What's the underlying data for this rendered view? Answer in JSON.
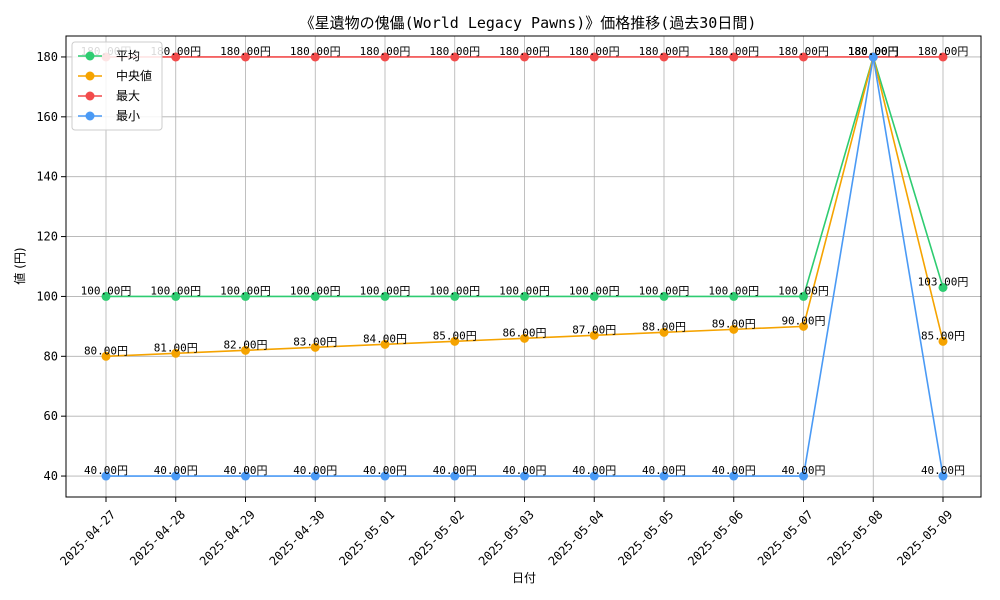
{
  "chart_data": {
    "type": "line",
    "title": "《星遺物の傀儡(World Legacy Pawns)》価格推移(過去30日間)",
    "xlabel": "日付",
    "ylabel": "値 (円)",
    "ylim": [
      33,
      187
    ],
    "yticks": [
      40,
      60,
      80,
      100,
      120,
      140,
      160,
      180
    ],
    "grid": true,
    "legend_position": "top-left",
    "value_suffix": "円",
    "categories": [
      "2025-04-27",
      "2025-04-28",
      "2025-04-29",
      "2025-04-30",
      "2025-05-01",
      "2025-05-02",
      "2025-05-03",
      "2025-05-04",
      "2025-05-05",
      "2025-05-06",
      "2025-05-07",
      "2025-05-08",
      "2025-05-09"
    ],
    "series": [
      {
        "name": "平均",
        "color": "#2ecc71",
        "values": [
          100,
          100,
          100,
          100,
          100,
          100,
          100,
          100,
          100,
          100,
          100,
          180,
          103
        ]
      },
      {
        "name": "中央値",
        "color": "#f5a300",
        "values": [
          80,
          81,
          82,
          83,
          84,
          85,
          86,
          87,
          88,
          89,
          90,
          180,
          85
        ]
      },
      {
        "name": "最大",
        "color": "#f24b4b",
        "values": [
          180,
          180,
          180,
          180,
          180,
          180,
          180,
          180,
          180,
          180,
          180,
          180,
          180
        ]
      },
      {
        "name": "最小",
        "color": "#4a9af5",
        "values": [
          40,
          40,
          40,
          40,
          40,
          40,
          40,
          40,
          40,
          40,
          40,
          180,
          40
        ]
      }
    ]
  }
}
